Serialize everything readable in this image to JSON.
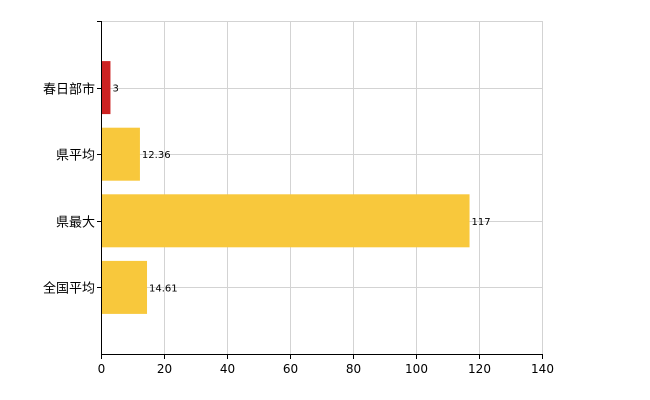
{
  "chart_data": {
    "type": "bar",
    "orientation": "horizontal",
    "categories": [
      "春日部市",
      "県平均",
      "県最大",
      "全国平均"
    ],
    "values": [
      3,
      12.36,
      117,
      14.61
    ],
    "data_labels": [
      "3",
      "12.36",
      "117",
      "14.61"
    ],
    "colors": [
      "#CC2222",
      "#F8C83C",
      "#F8C83C",
      "#F8C83C"
    ],
    "xlim": [
      0,
      140
    ],
    "x_ticks": [
      0,
      20,
      40,
      60,
      80,
      100,
      120,
      140
    ],
    "x_tick_labels": [
      "0",
      "20",
      "40",
      "60",
      "80",
      "100",
      "120",
      "140"
    ],
    "grid": true,
    "legend": "none"
  }
}
